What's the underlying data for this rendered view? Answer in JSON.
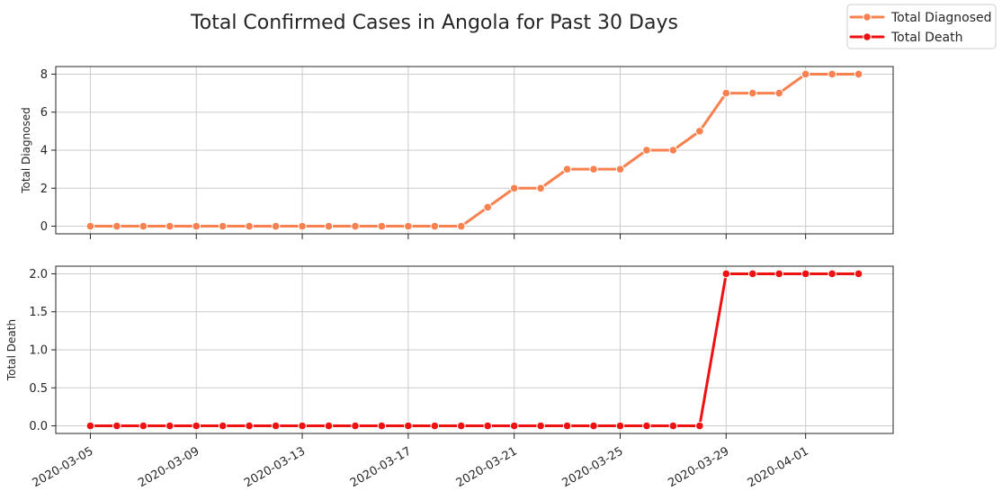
{
  "chart_data": {
    "type": "line",
    "title": "Total Confirmed Cases in Angola for Past 30 Days",
    "x": [
      "2020-03-05",
      "2020-03-06",
      "2020-03-07",
      "2020-03-08",
      "2020-03-09",
      "2020-03-10",
      "2020-03-11",
      "2020-03-12",
      "2020-03-13",
      "2020-03-14",
      "2020-03-15",
      "2020-03-16",
      "2020-03-17",
      "2020-03-18",
      "2020-03-19",
      "2020-03-20",
      "2020-03-21",
      "2020-03-22",
      "2020-03-23",
      "2020-03-24",
      "2020-03-25",
      "2020-03-26",
      "2020-03-27",
      "2020-03-28",
      "2020-03-29",
      "2020-03-30",
      "2020-03-31",
      "2020-04-01",
      "2020-04-02",
      "2020-04-03"
    ],
    "x_tick_labels": [
      "2020-03-05",
      "2020-03-09",
      "2020-03-13",
      "2020-03-17",
      "2020-03-21",
      "2020-03-25",
      "2020-03-29",
      "2020-04-01"
    ],
    "grid": true,
    "legend": {
      "placement": "top-right",
      "entries": [
        "Total Diagnosed",
        "Total Death"
      ]
    },
    "panels": [
      {
        "ylabel": "Total Diagnosed",
        "ylim": [
          -0.4,
          8.4
        ],
        "yticks": [
          0,
          2,
          4,
          6,
          8
        ],
        "yticklabels": [
          "0",
          "2",
          "4",
          "6",
          "8"
        ],
        "series": [
          {
            "name": "Total Diagnosed",
            "color": "#f9804f",
            "values": [
              0,
              0,
              0,
              0,
              0,
              0,
              0,
              0,
              0,
              0,
              0,
              0,
              0,
              0,
              0,
              1,
              2,
              2,
              3,
              3,
              3,
              4,
              4,
              5,
              7,
              7,
              7,
              8,
              8,
              8
            ]
          }
        ]
      },
      {
        "ylabel": "Total Death",
        "ylim": [
          -0.1,
          2.1
        ],
        "yticks": [
          0,
          0.5,
          1,
          1.5,
          2
        ],
        "yticklabels": [
          "0.0",
          "0.5",
          "1.0",
          "1.5",
          "2.0"
        ],
        "series": [
          {
            "name": "Total Death",
            "color": "#ee1111",
            "values": [
              0,
              0,
              0,
              0,
              0,
              0,
              0,
              0,
              0,
              0,
              0,
              0,
              0,
              0,
              0,
              0,
              0,
              0,
              0,
              0,
              0,
              0,
              0,
              0,
              2,
              2,
              2,
              2,
              2,
              2
            ]
          }
        ]
      }
    ]
  }
}
